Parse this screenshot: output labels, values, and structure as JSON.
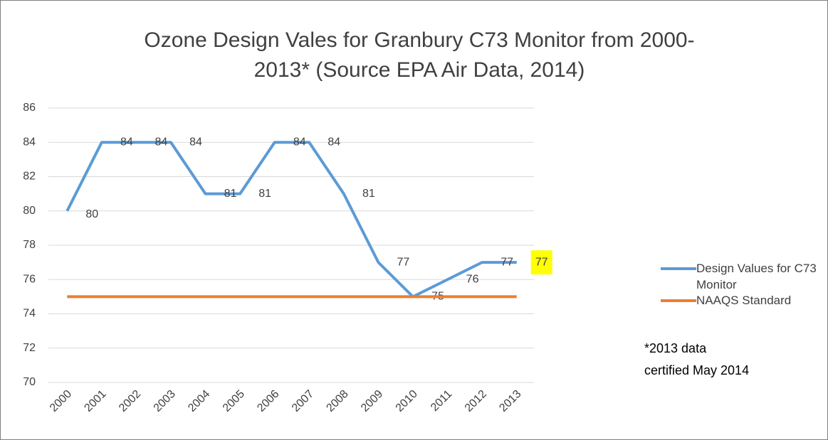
{
  "chart_data": {
    "type": "line",
    "title": [
      "Ozone Design Vales for Granbury C73 Monitor from 2000-",
      "2013* (Source EPA Air Data, 2014)"
    ],
    "categories": [
      "2000",
      "2001",
      "2002",
      "2003",
      "2004",
      "2005",
      "2006",
      "2007",
      "2008",
      "2009",
      "2010",
      "2011",
      "2012",
      "2013"
    ],
    "series": [
      {
        "name": "Design Values for C73 Monitor",
        "color": "#5b9bd5",
        "values": [
          80,
          84,
          84,
          84,
          81,
          81,
          84,
          84,
          81,
          77,
          75,
          76,
          77,
          77
        ],
        "data_labels": true,
        "highlight": {
          "index": 13,
          "color": "#ffff00"
        }
      },
      {
        "name": "NAAQS Standard",
        "color": "#ed7d31",
        "values": [
          75,
          75,
          75,
          75,
          75,
          75,
          75,
          75,
          75,
          75,
          75,
          75,
          75,
          75
        ],
        "data_labels": false
      }
    ],
    "ylim": [
      70,
      86
    ],
    "yticks": [
      70,
      72,
      74,
      76,
      78,
      80,
      82,
      84,
      86
    ],
    "grid": true,
    "legend": "right",
    "annotation": [
      "*2013 data",
      "certified May 2014"
    ]
  }
}
